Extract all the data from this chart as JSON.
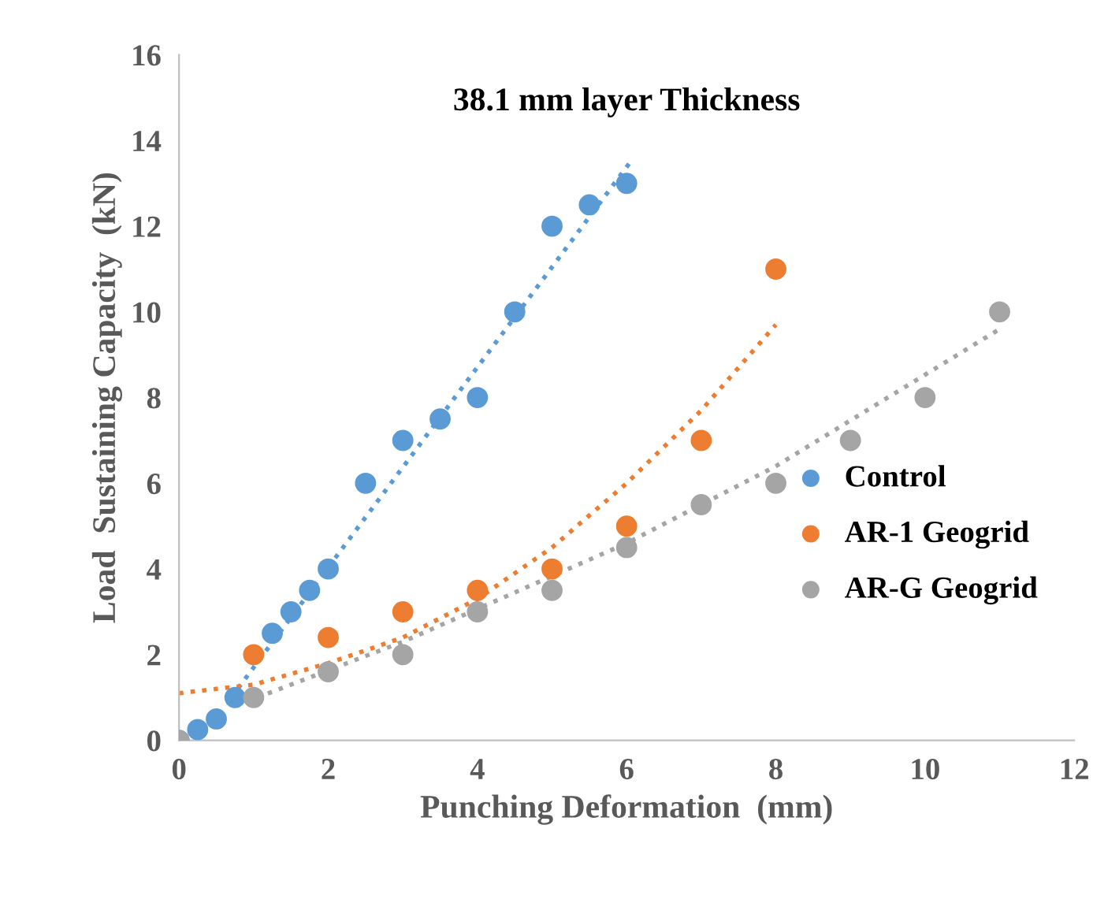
{
  "chart_data": {
    "type": "scatter",
    "title": "38.1 mm layer Thickness",
    "xlabel": "Punching Deformation  (mm)",
    "ylabel": "Load  Sustaining Capacity  (kN)",
    "xlim": [
      0,
      12
    ],
    "ylim": [
      0,
      16
    ],
    "xticks": [
      0,
      2,
      4,
      6,
      8,
      10,
      12
    ],
    "yticks": [
      0,
      2,
      4,
      6,
      8,
      10,
      12,
      14,
      16
    ],
    "grid": false,
    "legend": "right",
    "marker": "circle",
    "series": [
      {
        "name": "Control",
        "color": "#5b9bd5",
        "x": [
          0,
          0.25,
          0.5,
          0.75,
          1.25,
          1.5,
          1.75,
          2,
          2.5,
          3,
          3.5,
          4,
          4.5,
          5,
          5.5,
          6
        ],
        "values": [
          0,
          0.25,
          0.5,
          1,
          2.5,
          3,
          3.5,
          4,
          6,
          7,
          7.5,
          8,
          10,
          12,
          12.5,
          13
        ]
      },
      {
        "name": "AR-1 Geogrid",
        "color": "#ed7d31",
        "x": [
          1,
          2,
          3,
          4,
          5,
          6,
          7,
          8
        ],
        "values": [
          2,
          2.4,
          3,
          3.5,
          4,
          5,
          7,
          11
        ]
      },
      {
        "name": "AR-G Geogrid",
        "color": "#a5a5a5",
        "x": [
          0,
          1,
          2,
          3,
          4,
          5,
          6,
          7,
          8,
          9,
          10,
          11
        ],
        "values": [
          0,
          1,
          1.6,
          2,
          3,
          3.5,
          4.5,
          5.5,
          6,
          7,
          8,
          10
        ]
      },
      {
        "type": "line",
        "line_style": "dotted",
        "marker": "none",
        "color": "#5b9bd5",
        "x": [
          0.7,
          6.05
        ],
        "values": [
          1,
          13.5
        ]
      },
      {
        "type": "line",
        "line_style": "dotted",
        "marker": "none",
        "color": "#ed7d31",
        "x": [
          0,
          1,
          2,
          3,
          4,
          5,
          6,
          7,
          8
        ],
        "values": [
          1.1,
          1.3,
          1.8,
          2.4,
          3.3,
          4.5,
          6,
          7.7,
          9.7
        ]
      },
      {
        "type": "line",
        "line_style": "dotted",
        "marker": "none",
        "color": "#a5a5a5",
        "x": [
          0.9,
          3,
          6,
          8,
          11
        ],
        "values": [
          0.9,
          2.3,
          4.6,
          6.4,
          9.6
        ]
      }
    ]
  }
}
